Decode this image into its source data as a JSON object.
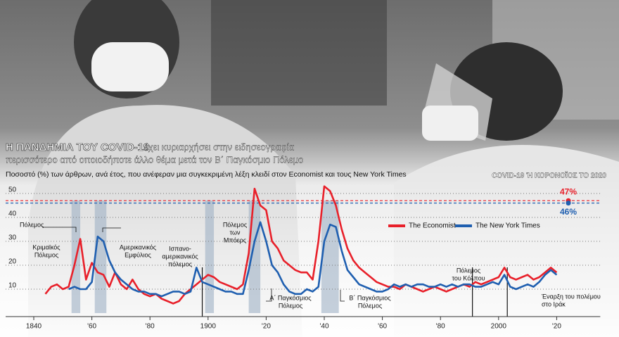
{
  "chart_data": {
    "type": "line",
    "title": "Η ΠΑΝΔΗΜΙΑ ΤΟΥ COVID-19",
    "title_rest": [
      "έχει κυριαρχήσει στην ειδησεογραφία",
      "περισσότερο από οποιοδήποτε άλλο θέμα μετά τον Β΄ Παγκόσμιο Πόλεμο"
    ],
    "subtitle": "Ποσοστό (%) των άρθρων, ανά έτος, που ανέφεραν μια συγκεκριμένη λέξη κλειδί στον Economist και τους New York Times",
    "x": [
      1844,
      1846,
      1848,
      1850,
      1852,
      1854,
      1856,
      1858,
      1860,
      1862,
      1864,
      1866,
      1868,
      1870,
      1872,
      1874,
      1876,
      1878,
      1880,
      1882,
      1884,
      1886,
      1888,
      1890,
      1892,
      1894,
      1896,
      1898,
      1900,
      1902,
      1904,
      1906,
      1908,
      1910,
      1912,
      1914,
      1916,
      1918,
      1920,
      1922,
      1924,
      1926,
      1928,
      1930,
      1932,
      1934,
      1936,
      1938,
      1940,
      1942,
      1944,
      1946,
      1948,
      1950,
      1952,
      1954,
      1956,
      1958,
      1960,
      1962,
      1964,
      1966,
      1968,
      1970,
      1972,
      1974,
      1976,
      1978,
      1980,
      1982,
      1984,
      1986,
      1988,
      1990,
      1992,
      1994,
      1996,
      1998,
      2000,
      2002,
      2004,
      2006,
      2008,
      2010,
      2012,
      2014,
      2016,
      2018,
      2020
    ],
    "series": [
      {
        "name": "The Economist",
        "color": "#e8202a",
        "values": [
          8,
          11,
          12,
          10,
          11,
          20,
          31,
          14,
          21,
          17,
          16,
          11,
          17,
          12,
          10,
          14,
          10,
          8,
          7,
          8,
          6,
          5,
          4,
          5,
          8,
          10,
          12,
          14,
          16,
          15,
          13,
          12,
          11,
          10,
          12,
          25,
          52,
          45,
          43,
          30,
          27,
          22,
          20,
          18,
          17,
          17,
          14,
          30,
          53,
          51,
          45,
          35,
          27,
          22,
          19,
          17,
          15,
          13,
          12,
          11,
          11,
          10,
          12,
          11,
          10,
          9,
          10,
          11,
          10,
          9,
          10,
          11,
          12,
          11,
          13,
          12,
          13,
          14,
          15,
          19,
          15,
          14,
          15,
          16,
          14,
          15,
          17,
          19,
          17
        ]
      },
      {
        "name": "The New York Times",
        "color": "#1f5fb0",
        "values": [
          null,
          null,
          null,
          null,
          10,
          11,
          10,
          10,
          13,
          32,
          30,
          22,
          17,
          14,
          12,
          10,
          9,
          9,
          8,
          8,
          7,
          8,
          9,
          9,
          8,
          9,
          19,
          13,
          12,
          11,
          10,
          9,
          9,
          8,
          8,
          18,
          30,
          38,
          30,
          20,
          17,
          12,
          9,
          8,
          8,
          10,
          9,
          11,
          30,
          37,
          36,
          26,
          18,
          15,
          12,
          11,
          10,
          9,
          9,
          10,
          12,
          11,
          12,
          11,
          12,
          12,
          11,
          11,
          12,
          11,
          12,
          11,
          12,
          12,
          11,
          11,
          12,
          13,
          12,
          16,
          11,
          10,
          11,
          12,
          11,
          13,
          16,
          18,
          16
        ]
      }
    ],
    "xlim": [
      1835,
      2035
    ],
    "xticks": [
      1840,
      {
        "value": 1860,
        "label": "'60"
      },
      {
        "value": 1880,
        "label": "'80"
      },
      1900,
      {
        "value": 1920,
        "label": "'20"
      },
      {
        "value": 1940,
        "label": "'40"
      },
      {
        "value": 1960,
        "label": "'60"
      },
      {
        "value": 1980,
        "label": "'80"
      },
      2000,
      {
        "value": 2020,
        "label": "'20"
      }
    ],
    "ylim": [
      0,
      53
    ],
    "yticks": [
      10,
      20,
      30,
      40,
      50
    ],
    "grid": true,
    "shaded_periods": [
      [
        1853,
        1856
      ],
      [
        1861,
        1865
      ],
      [
        1899,
        1902
      ],
      [
        1914,
        1918
      ],
      [
        1939,
        1945
      ]
    ],
    "event_lines": [
      1898,
      1991,
      2003
    ],
    "annotations": [
      [
        "Πόλεμος"
      ],
      [
        "Κριμαϊκός",
        "Πόλεμος"
      ],
      [
        "Αμερικανικός",
        "Εμφύλιος"
      ],
      [
        "Ισπανο-",
        "αμερικανικός",
        "πόλεμος"
      ],
      [
        "Πόλεμος",
        "των",
        "Μπόερς"
      ],
      [
        "Α΄ Παγκόσμιος",
        "Πόλεμος"
      ],
      [
        "Β΄ Παγκόσμιος",
        "Πόλεμος"
      ],
      [
        "Πόλεμος",
        "του Κόλπου"
      ],
      [
        "Έναρξη του πολέμου",
        "στο Ιράκ"
      ]
    ],
    "covid_2020": {
      "label": "COVID-19 Ή ΚΟΡΟΝΟΪΟΣ ΤΟ 2020",
      "values": [
        47,
        46
      ],
      "value_labels": [
        "47%",
        "46%"
      ]
    }
  }
}
